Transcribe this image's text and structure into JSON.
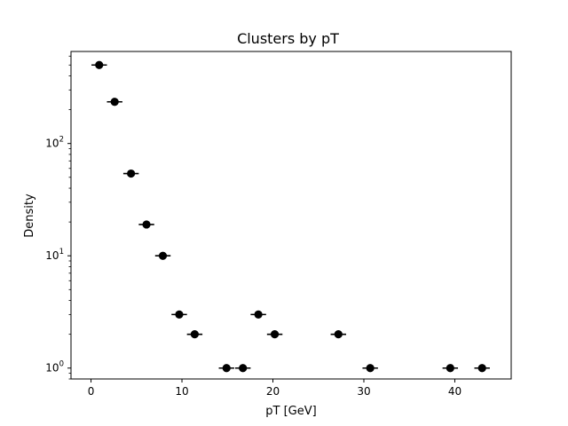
{
  "chart_data": {
    "type": "scatter",
    "title": "Clusters by pT",
    "xlabel": "pT [GeV]",
    "ylabel": "Density",
    "xlim": [
      -2.2,
      46.2
    ],
    "ylim": [
      0.8,
      660
    ],
    "yscale": "log",
    "grid": false,
    "x_ticks": [
      0,
      10,
      20,
      30,
      40
    ],
    "y_ticks": [
      {
        "value": 1,
        "base": "10",
        "exp": "0"
      },
      {
        "value": 10,
        "base": "10",
        "exp": "1"
      },
      {
        "value": 100,
        "base": "10",
        "exp": "2"
      }
    ],
    "marker_color": "#000000",
    "bin_halfwidth": 0.85,
    "series": [
      {
        "x": [
          0.9,
          2.6,
          4.4,
          6.1,
          7.9,
          9.7,
          11.4,
          14.9,
          16.7,
          18.4,
          20.2,
          27.2,
          30.7,
          39.5,
          43.0
        ],
        "y": [
          500,
          235,
          54,
          19,
          10,
          3,
          2,
          1,
          1,
          3,
          2,
          2,
          1,
          1,
          1
        ]
      }
    ]
  }
}
